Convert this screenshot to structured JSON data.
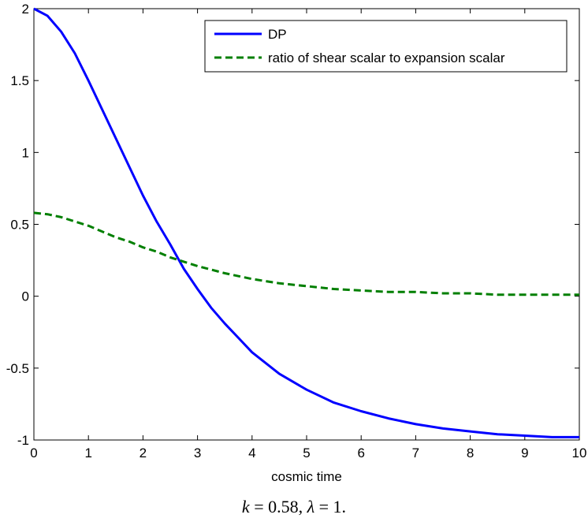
{
  "chart_data": {
    "type": "line",
    "title": "",
    "xlabel": "cosmic time",
    "ylabel": "",
    "xlim": [
      0,
      10
    ],
    "ylim": [
      -1,
      2
    ],
    "xticks": [
      "0",
      "1",
      "2",
      "3",
      "4",
      "5",
      "6",
      "7",
      "8",
      "9",
      "10"
    ],
    "yticks": [
      "-1",
      "-0.5",
      "0",
      "0.5",
      "1",
      "1.5",
      "2"
    ],
    "grid": false,
    "legend_position": "top-right",
    "series": [
      {
        "name": "DP",
        "color": "#0000ff",
        "style": "solid",
        "x": [
          0,
          0.25,
          0.5,
          0.75,
          1,
          1.25,
          1.5,
          1.75,
          2,
          2.25,
          2.5,
          2.75,
          3,
          3.25,
          3.5,
          3.75,
          4,
          4.5,
          5,
          5.5,
          6,
          6.5,
          7,
          7.5,
          8,
          8.5,
          9,
          9.5,
          10
        ],
        "y": [
          2.0,
          1.95,
          1.84,
          1.69,
          1.5,
          1.3,
          1.1,
          0.9,
          0.7,
          0.52,
          0.36,
          0.19,
          0.05,
          -0.08,
          -0.19,
          -0.29,
          -0.39,
          -0.54,
          -0.65,
          -0.74,
          -0.8,
          -0.85,
          -0.89,
          -0.92,
          -0.94,
          -0.96,
          -0.97,
          -0.98,
          -0.98
        ]
      },
      {
        "name": "ratio of shear scalar to expansion scalar",
        "color": "#007f00",
        "style": "dashed",
        "x": [
          0,
          0.25,
          0.5,
          0.75,
          1,
          1.25,
          1.5,
          1.75,
          2,
          2.25,
          2.5,
          2.75,
          3,
          3.5,
          4,
          4.5,
          5,
          5.5,
          6,
          6.5,
          7,
          7.5,
          8,
          8.5,
          9,
          9.5,
          10
        ],
        "y": [
          0.58,
          0.57,
          0.55,
          0.52,
          0.49,
          0.45,
          0.41,
          0.38,
          0.34,
          0.31,
          0.27,
          0.24,
          0.21,
          0.16,
          0.12,
          0.09,
          0.07,
          0.05,
          0.04,
          0.03,
          0.03,
          0.02,
          0.02,
          0.01,
          0.01,
          0.01,
          0.01
        ]
      }
    ]
  },
  "caption": {
    "k_var": "k",
    "k_eq": " = 0.58, ",
    "lambda_var": "λ",
    "lambda_eq": " = 1."
  }
}
